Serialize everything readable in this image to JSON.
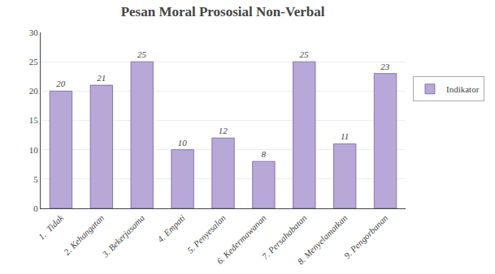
{
  "chart_data": {
    "type": "bar",
    "title": "Pesan Moral Prososial Non-Verbal",
    "categories": [
      "1.  Tidak",
      "2. Kehangatan",
      "3. Bekerjasama",
      "4. Empati",
      "5. Penyesalan",
      "6. Kedermawanan",
      "7. Persahabatan",
      "8. Menyelamatkan",
      "9. Pengorbanan"
    ],
    "series": [
      {
        "name": "Indikator",
        "color": "#b8a8d8",
        "values": [
          20,
          21,
          25,
          10,
          12,
          8,
          25,
          11,
          23
        ]
      }
    ],
    "ylim": [
      0,
      30
    ],
    "yticks": [
      0,
      5,
      10,
      15,
      20,
      25,
      30
    ],
    "grid": true,
    "legend": "right",
    "data_labels": true
  }
}
